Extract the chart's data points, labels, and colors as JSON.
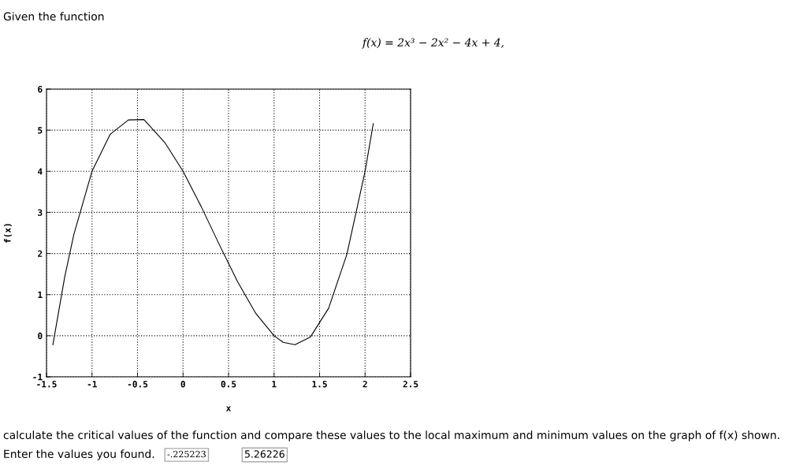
{
  "chart_data": {
    "type": "line",
    "title": "Given the function",
    "subtitle": "f(x) = 2x³ − 2x² − 4x + 4,",
    "xlabel": "x",
    "ylabel": "f(x)",
    "x": [
      -1.43,
      -1.3,
      -1.2,
      -1.0,
      -0.8,
      -0.6,
      -0.43,
      -0.2,
      0,
      0.2,
      0.4,
      0.6,
      0.8,
      1.0,
      1.1,
      1.23,
      1.4,
      1.6,
      1.8,
      2.0,
      2.09
    ],
    "series": [
      {
        "color": "#000000",
        "values": [
          -0.22,
          1.43,
          2.46,
          4.0,
          4.9,
          5.25,
          5.26,
          4.7,
          4.0,
          3.14,
          2.21,
          1.31,
          0.54,
          0.0,
          -0.16,
          -0.22,
          -0.03,
          0.67,
          1.98,
          4.0,
          5.16
        ]
      }
    ],
    "xlim": [
      -1.5,
      2.5
    ],
    "ylim": [
      -1,
      6
    ],
    "xticks": [
      -1.5,
      -1,
      -0.5,
      0,
      0.5,
      1,
      1.5,
      2,
      2.5
    ],
    "yticks": [
      -1,
      0,
      1,
      2,
      3,
      4,
      5,
      6
    ],
    "grid": true,
    "legend": false,
    "marker": "none",
    "line_style": "solid",
    "annotations": [
      "calculate the critical values of the function and compare these values to the local maximum and minimum values on the graph of f(x) shown.",
      "Enter the values you found.",
      "-.225223",
      "5.26226"
    ]
  }
}
